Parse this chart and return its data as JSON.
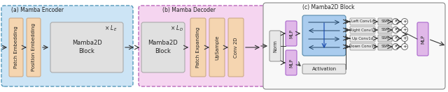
{
  "title_a": "(a) Mamba Encoder",
  "title_b": "(b) Mamba Decoder",
  "title_c": "(c) Mamba2D Block",
  "bg_color": "#ffffff",
  "encoder_bg": "#cce4f5",
  "decoder_bg": "#f5d5f0",
  "block_bg": "#e0e0e0",
  "peach_color": "#f5d5b0",
  "purple_color": "#e0b8e8",
  "blue_scan_color": "#aaccee",
  "norm_color": "#e8e8e8",
  "activation_color": "#e8e8e8",
  "arrow_color": "#333333",
  "text_color": "#222222",
  "font_size": 5.5
}
